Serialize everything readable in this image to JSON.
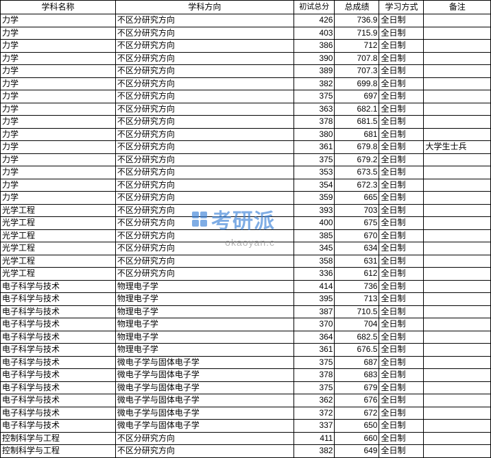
{
  "table": {
    "columns": {
      "subject": "学科名称",
      "direction": "学科方向",
      "initscore": "初试总分",
      "totalscore": "总成绩",
      "studymode": "学习方式",
      "note": "备注"
    },
    "rows": [
      {
        "subject": "力学",
        "direction": "不区分研究方向",
        "initscore": "426",
        "totalscore": "736.9",
        "studymode": "全日制",
        "note": ""
      },
      {
        "subject": "力学",
        "direction": "不区分研究方向",
        "initscore": "403",
        "totalscore": "715.9",
        "studymode": "全日制",
        "note": ""
      },
      {
        "subject": "力学",
        "direction": "不区分研究方向",
        "initscore": "386",
        "totalscore": "712",
        "studymode": "全日制",
        "note": ""
      },
      {
        "subject": "力学",
        "direction": "不区分研究方向",
        "initscore": "390",
        "totalscore": "707.8",
        "studymode": "全日制",
        "note": ""
      },
      {
        "subject": "力学",
        "direction": "不区分研究方向",
        "initscore": "389",
        "totalscore": "707.3",
        "studymode": "全日制",
        "note": ""
      },
      {
        "subject": "力学",
        "direction": "不区分研究方向",
        "initscore": "382",
        "totalscore": "699.8",
        "studymode": "全日制",
        "note": ""
      },
      {
        "subject": "力学",
        "direction": "不区分研究方向",
        "initscore": "375",
        "totalscore": "697",
        "studymode": "全日制",
        "note": ""
      },
      {
        "subject": "力学",
        "direction": "不区分研究方向",
        "initscore": "363",
        "totalscore": "682.1",
        "studymode": "全日制",
        "note": ""
      },
      {
        "subject": "力学",
        "direction": "不区分研究方向",
        "initscore": "378",
        "totalscore": "681.5",
        "studymode": "全日制",
        "note": ""
      },
      {
        "subject": "力学",
        "direction": "不区分研究方向",
        "initscore": "380",
        "totalscore": "681",
        "studymode": "全日制",
        "note": ""
      },
      {
        "subject": "力学",
        "direction": "不区分研究方向",
        "initscore": "361",
        "totalscore": "679.8",
        "studymode": "全日制",
        "note": "大学生士兵"
      },
      {
        "subject": "力学",
        "direction": "不区分研究方向",
        "initscore": "375",
        "totalscore": "679.2",
        "studymode": "全日制",
        "note": ""
      },
      {
        "subject": "力学",
        "direction": "不区分研究方向",
        "initscore": "353",
        "totalscore": "673.5",
        "studymode": "全日制",
        "note": ""
      },
      {
        "subject": "力学",
        "direction": "不区分研究方向",
        "initscore": "354",
        "totalscore": "672.3",
        "studymode": "全日制",
        "note": ""
      },
      {
        "subject": "力学",
        "direction": "不区分研究方向",
        "initscore": "359",
        "totalscore": "665",
        "studymode": "全日制",
        "note": ""
      },
      {
        "subject": "光学工程",
        "direction": "不区分研究方向",
        "initscore": "393",
        "totalscore": "703",
        "studymode": "全日制",
        "note": ""
      },
      {
        "subject": "光学工程",
        "direction": "不区分研究方向",
        "initscore": "400",
        "totalscore": "675",
        "studymode": "全日制",
        "note": ""
      },
      {
        "subject": "光学工程",
        "direction": "不区分研究方向",
        "initscore": "385",
        "totalscore": "670",
        "studymode": "全日制",
        "note": ""
      },
      {
        "subject": "光学工程",
        "direction": "不区分研究方向",
        "initscore": "345",
        "totalscore": "634",
        "studymode": "全日制",
        "note": ""
      },
      {
        "subject": "光学工程",
        "direction": "不区分研究方向",
        "initscore": "358",
        "totalscore": "631",
        "studymode": "全日制",
        "note": ""
      },
      {
        "subject": "光学工程",
        "direction": "不区分研究方向",
        "initscore": "336",
        "totalscore": "612",
        "studymode": "全日制",
        "note": ""
      },
      {
        "subject": "电子科学与技术",
        "direction": "物理电子学",
        "initscore": "414",
        "totalscore": "736",
        "studymode": "全日制",
        "note": ""
      },
      {
        "subject": "电子科学与技术",
        "direction": "物理电子学",
        "initscore": "395",
        "totalscore": "713",
        "studymode": "全日制",
        "note": ""
      },
      {
        "subject": "电子科学与技术",
        "direction": "物理电子学",
        "initscore": "387",
        "totalscore": "710.5",
        "studymode": "全日制",
        "note": ""
      },
      {
        "subject": "电子科学与技术",
        "direction": "物理电子学",
        "initscore": "370",
        "totalscore": "704",
        "studymode": "全日制",
        "note": ""
      },
      {
        "subject": "电子科学与技术",
        "direction": "物理电子学",
        "initscore": "364",
        "totalscore": "682.5",
        "studymode": "全日制",
        "note": ""
      },
      {
        "subject": "电子科学与技术",
        "direction": "物理电子学",
        "initscore": "361",
        "totalscore": "676.5",
        "studymode": "全日制",
        "note": ""
      },
      {
        "subject": "电子科学与技术",
        "direction": "微电子学与固体电子学",
        "initscore": "375",
        "totalscore": "687",
        "studymode": "全日制",
        "note": ""
      },
      {
        "subject": "电子科学与技术",
        "direction": "微电子学与固体电子学",
        "initscore": "378",
        "totalscore": "683",
        "studymode": "全日制",
        "note": ""
      },
      {
        "subject": "电子科学与技术",
        "direction": "微电子学与固体电子学",
        "initscore": "375",
        "totalscore": "679",
        "studymode": "全日制",
        "note": ""
      },
      {
        "subject": "电子科学与技术",
        "direction": "微电子学与固体电子学",
        "initscore": "362",
        "totalscore": "676",
        "studymode": "全日制",
        "note": ""
      },
      {
        "subject": "电子科学与技术",
        "direction": "微电子学与固体电子学",
        "initscore": "372",
        "totalscore": "672",
        "studymode": "全日制",
        "note": ""
      },
      {
        "subject": "电子科学与技术",
        "direction": "微电子学与固体电子学",
        "initscore": "337",
        "totalscore": "650",
        "studymode": "全日制",
        "note": ""
      },
      {
        "subject": "控制科学与工程",
        "direction": "不区分研究方向",
        "initscore": "411",
        "totalscore": "660",
        "studymode": "全日制",
        "note": ""
      },
      {
        "subject": "控制科学与工程",
        "direction": "不区分研究方向",
        "initscore": "382",
        "totalscore": "649",
        "studymode": "全日制",
        "note": ""
      }
    ]
  },
  "watermark": {
    "text": "考研派",
    "url": "okaoyan.c",
    "color": "#3b82d8"
  }
}
